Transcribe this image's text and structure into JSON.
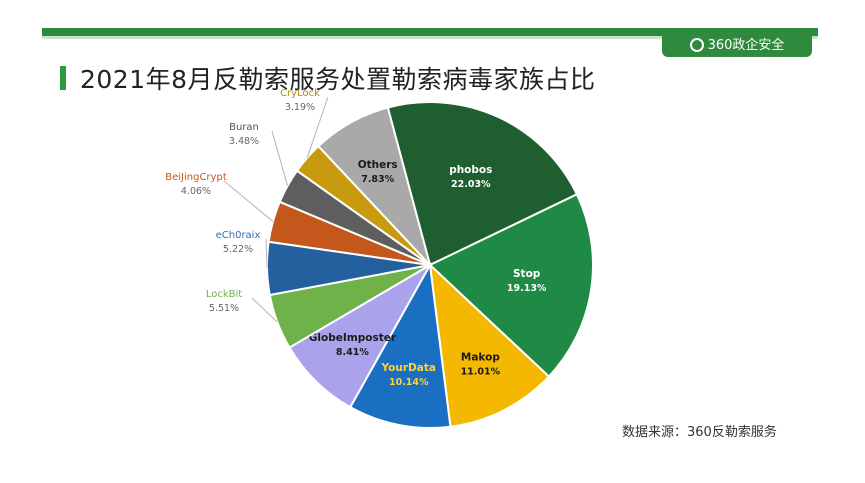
{
  "slide": {
    "title": "2021年8月反勒索服务处置勒索病毒家族占比",
    "brand": "360政企安全",
    "source": "数据来源：360反勒索服务"
  },
  "chart_data": {
    "type": "pie",
    "title": "2021年8月反勒索服务处置勒索病毒家族占比",
    "slices": [
      {
        "label": "phobos",
        "value": 22.03,
        "pct": "22.03%",
        "color": "#1f5e2e",
        "label_color": "#ffffff",
        "label_pos": "inside"
      },
      {
        "label": "Stop",
        "value": 19.13,
        "pct": "19.13%",
        "color": "#1e8a45",
        "label_color": "#ffffff",
        "label_pos": "inside"
      },
      {
        "label": "Makop",
        "value": 11.01,
        "pct": "11.01%",
        "color": "#f5b800",
        "label_color": "#1a1a1a",
        "label_pos": "inside"
      },
      {
        "label": "YourData",
        "value": 10.14,
        "pct": "10.14%",
        "color": "#1b6fc2",
        "label_color": "#ffd23a",
        "label_pos": "inside"
      },
      {
        "label": "GlobeImposter",
        "value": 8.41,
        "pct": "8.41%",
        "color": "#aaa3ec",
        "label_color": "#1a1a1a",
        "label_pos": "inside"
      },
      {
        "label": "LockBit",
        "value": 5.51,
        "pct": "5.51%",
        "color": "#6fb24a",
        "label_color": "#6fb24a",
        "label_pos": "outside"
      },
      {
        "label": "eCh0raix",
        "value": 5.22,
        "pct": "5.22%",
        "color": "#245f9e",
        "label_color": "#2f6fb0",
        "label_pos": "outside"
      },
      {
        "label": "BeiJingCrypt",
        "value": 4.06,
        "pct": "4.06%",
        "color": "#c4581c",
        "label_color": "#c4581c",
        "label_pos": "outside"
      },
      {
        "label": "Buran",
        "value": 3.48,
        "pct": "3.48%",
        "color": "#5e5e5e",
        "label_color": "#555555",
        "label_pos": "outside"
      },
      {
        "label": "CryLock",
        "value": 3.19,
        "pct": "3.19%",
        "color": "#c89a10",
        "label_color": "#b48a0c",
        "label_pos": "outside"
      },
      {
        "label": "Others",
        "value": 7.83,
        "pct": "7.83%",
        "color": "#a9a9a9",
        "label_color": "#1a1a1a",
        "label_pos": "inside"
      }
    ]
  }
}
